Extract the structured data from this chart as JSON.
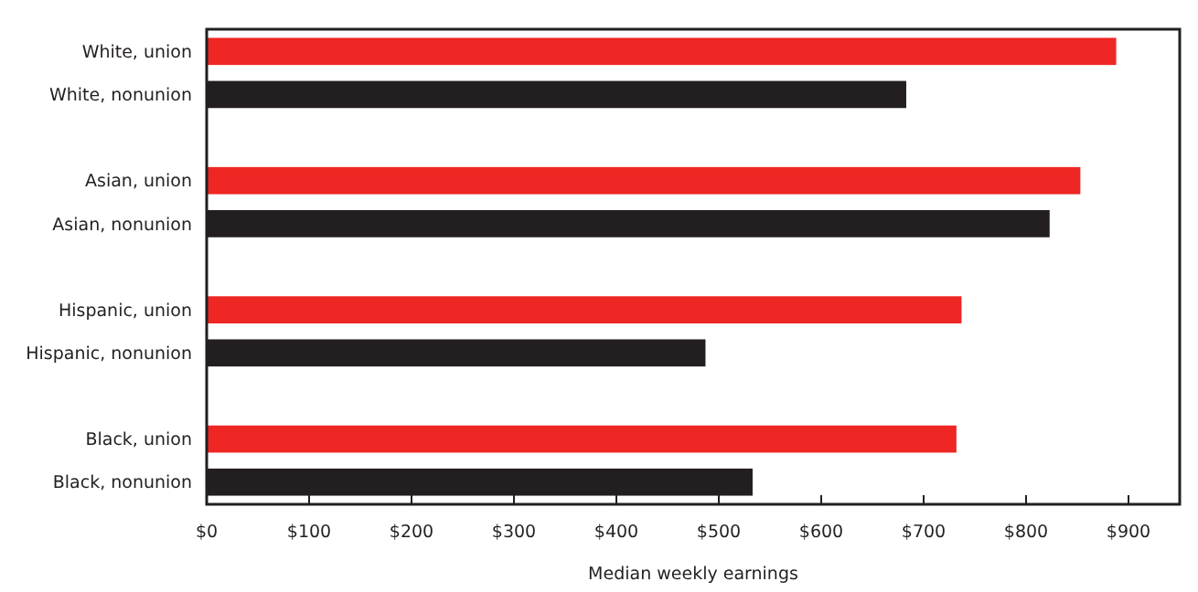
{
  "chart_data": {
    "type": "bar",
    "orientation": "horizontal",
    "xlabel": "Median weekly earnings",
    "categories": [
      "White, union",
      "White, nonunion",
      null,
      "Asian, union",
      "Asian, nonunion",
      null,
      "Hispanic, union",
      "Hispanic, nonunion",
      null,
      "Black, union",
      "Black, nonunion"
    ],
    "values": [
      888,
      683,
      null,
      853,
      823,
      null,
      737,
      487,
      null,
      732,
      533
    ],
    "colors": [
      "#ee2724",
      "#231f20",
      null,
      "#ee2724",
      "#231f20",
      null,
      "#ee2724",
      "#231f20",
      null,
      "#ee2724",
      "#231f20"
    ],
    "xlim": [
      0,
      950
    ],
    "xticks": [
      {
        "value": 0,
        "label": "$0"
      },
      {
        "value": 100,
        "label": "$100"
      },
      {
        "value": 200,
        "label": "$200"
      },
      {
        "value": 300,
        "label": "$300"
      },
      {
        "value": 400,
        "label": "$400"
      },
      {
        "value": 500,
        "label": "$500"
      },
      {
        "value": 600,
        "label": "$600"
      },
      {
        "value": 700,
        "label": "$700"
      },
      {
        "value": 800,
        "label": "$800"
      },
      {
        "value": 900,
        "label": "$900"
      }
    ],
    "grid": false
  }
}
